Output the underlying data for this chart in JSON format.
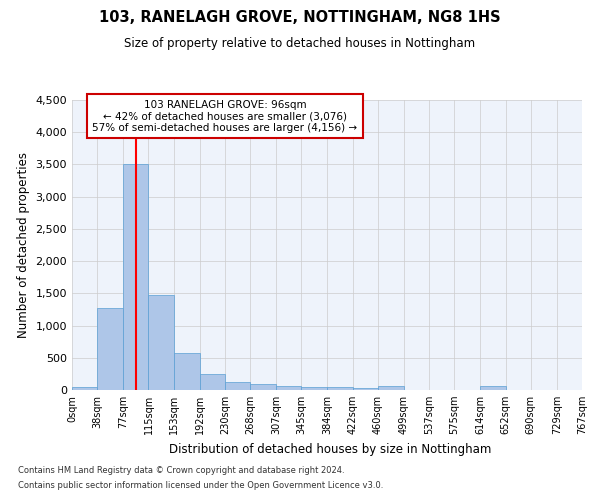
{
  "title": "103, RANELAGH GROVE, NOTTINGHAM, NG8 1HS",
  "subtitle": "Size of property relative to detached houses in Nottingham",
  "xlabel": "Distribution of detached houses by size in Nottingham",
  "ylabel": "Number of detached properties",
  "bar_color": "#aec6e8",
  "bar_edge_color": "#5a9fd4",
  "grid_color": "#cccccc",
  "bg_color": "#eef3fb",
  "annotation_box_color": "#cc0000",
  "annotation_line1": "103 RANELAGH GROVE: 96sqm",
  "annotation_line2": "← 42% of detached houses are smaller (3,076)",
  "annotation_line3": "57% of semi-detached houses are larger (4,156) →",
  "property_size_sqm": 96,
  "bin_edges": [
    0,
    38,
    77,
    115,
    153,
    192,
    230,
    268,
    307,
    345,
    384,
    422,
    460,
    499,
    537,
    575,
    614,
    652,
    690,
    729,
    767
  ],
  "bar_heights": [
    50,
    1270,
    3500,
    1480,
    580,
    245,
    120,
    90,
    55,
    40,
    40,
    30,
    55,
    0,
    0,
    0,
    55,
    0,
    0,
    0
  ],
  "ylim": [
    0,
    4500
  ],
  "yticks": [
    0,
    500,
    1000,
    1500,
    2000,
    2500,
    3000,
    3500,
    4000,
    4500
  ],
  "tick_labels": [
    "0sqm",
    "38sqm",
    "77sqm",
    "115sqm",
    "153sqm",
    "192sqm",
    "230sqm",
    "268sqm",
    "307sqm",
    "345sqm",
    "384sqm",
    "422sqm",
    "460sqm",
    "499sqm",
    "537sqm",
    "575sqm",
    "614sqm",
    "652sqm",
    "690sqm",
    "729sqm",
    "767sqm"
  ],
  "footnote1": "Contains HM Land Registry data © Crown copyright and database right 2024.",
  "footnote2": "Contains public sector information licensed under the Open Government Licence v3.0."
}
